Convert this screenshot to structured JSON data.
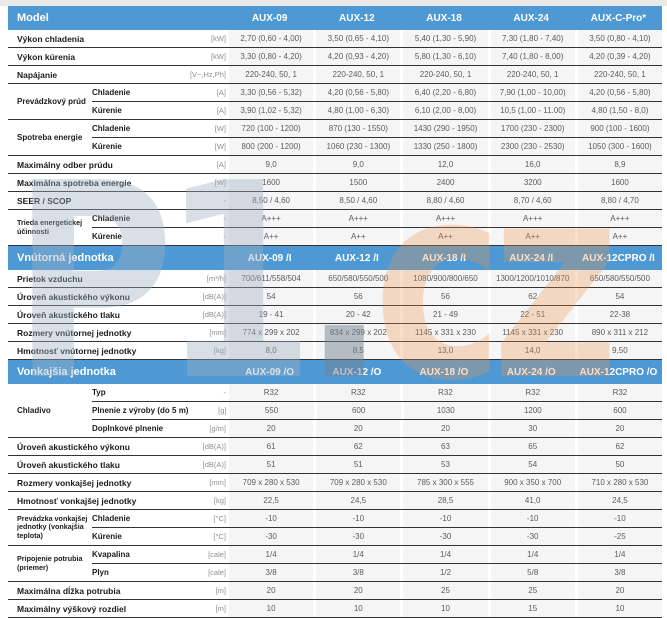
{
  "colors": {
    "header_blue": "#4e99d3",
    "cell_bg": "#f5f5f5",
    "border_dark": "#333333",
    "watermark_blue": "#9eafc4",
    "watermark_orange": "#ec9650"
  },
  "watermark": {
    "left": "P1",
    "dot": ".",
    "right": "cz"
  },
  "table": {
    "sections": [
      {
        "header": {
          "label": "Model",
          "columns": [
            "AUX-09",
            "AUX-12",
            "AUX-18",
            "AUX-24",
            "AUX-C-Pro*"
          ]
        },
        "rows": [
          {
            "label": "Výkon chladenia",
            "unit": "[kW]",
            "values": [
              "2,70 (0,60 - 4,00)",
              "3,50 (0,65 - 4,10)",
              "5,40 (1,30 - 5,90)",
              "7,30 (1,80 - 7,40)",
              "3,50 (0,80 - 4,10)"
            ]
          },
          {
            "label": "Výkon kúrenia",
            "unit": "[kW]",
            "values": [
              "3,30 (0,80 - 4,20)",
              "4,20 (0,93 - 4,20)",
              "5,80 (1,30 - 6,10)",
              "7,40 (1,80 - 8,00)",
              "4,20 (0,39 - 4,20)"
            ]
          },
          {
            "label": "Napájanie",
            "unit": "[V~,Hz,Ph]",
            "values": [
              "220-240, 50, 1",
              "220-240, 50, 1",
              "220-240, 50, 1",
              "220-240, 50, 1",
              "220-240, 50, 1"
            ]
          },
          {
            "group": "Prevádzkový prúd",
            "subrows": [
              {
                "label": "Chladenie",
                "unit": "[A]",
                "values": [
                  "3,30 (0,56 - 5,32)",
                  "4,20 (0,56 - 5,80)",
                  "6,40 (2,20 - 6,80)",
                  "7,90 (1,00 - 10,00)",
                  "4,20 (0,56 - 5,80)"
                ]
              },
              {
                "label": "Kúrenie",
                "unit": "[A]",
                "values": [
                  "3,90 (1,02 - 5,32)",
                  "4,80 (1,00 - 6,30)",
                  "6,10 (2,00 - 8,00)",
                  "10,5 (1,00 - 11.00)",
                  "4,80 (1,50 - 8,0)"
                ]
              }
            ]
          },
          {
            "group": "Spotreba energie",
            "subrows": [
              {
                "label": "Chladenie",
                "unit": "[W]",
                "values": [
                  "720 (100 - 1200)",
                  "870 (130 - 1550)",
                  "1430 (290 - 1950)",
                  "1700 (230 - 2300)",
                  "900 (100 - 1600)"
                ]
              },
              {
                "label": "Kúrenie",
                "unit": "[W]",
                "values": [
                  "800 (200 - 1200)",
                  "1060 (230 - 1300)",
                  "1330 (250 - 1800)",
                  "2300 (230 - 2530)",
                  "1050 (300 - 1600)"
                ]
              }
            ]
          },
          {
            "label": "Maximálny odber prúdu",
            "unit": "[A]",
            "values": [
              "9,0",
              "9,0",
              "12,0",
              "16,0",
              "8,9"
            ]
          },
          {
            "label": "Maximálna spotreba energie",
            "unit": "[W]",
            "values": [
              "1600",
              "1500",
              "2400",
              "3200",
              "1600"
            ]
          },
          {
            "label": "SEER / SCOP",
            "unit": "-",
            "values": [
              "8,50 / 4,60",
              "8,50 / 4,60",
              "8,80 / 4,60",
              "8,70 / 4,60",
              "8,80 / 4,70"
            ]
          },
          {
            "group": "Trieda energetickej účinnosti",
            "subrows": [
              {
                "label": "Chladenie",
                "unit": "-",
                "values": [
                  "A+++",
                  "A+++",
                  "A+++",
                  "A+++",
                  "A+++"
                ]
              },
              {
                "label": "Kúrenie",
                "unit": "-",
                "values": [
                  "A++",
                  "A++",
                  "A++",
                  "A++",
                  "A++"
                ]
              }
            ]
          }
        ]
      },
      {
        "header": {
          "label": "Vnútorná jednotka",
          "columns": [
            "AUX-09 /I",
            "AUX-12 /I",
            "AUX-18 /I",
            "AUX-24 /I",
            "AUX-12CPRO /I"
          ]
        },
        "rows": [
          {
            "label": "Prietok vzduchu",
            "unit": "[m³/h]",
            "values": [
              "700/611/558/504",
              "650/580/550/500",
              "1080/900/800/650",
              "1300/1200/1010/870",
              "650/580/550/500"
            ]
          },
          {
            "label": "Úroveň akustického výkonu",
            "unit": "[dB(A)]",
            "values": [
              "54",
              "56",
              "56",
              "62",
              "54"
            ]
          },
          {
            "label": "Úroveň akustického tlaku",
            "unit": "[dB(A)]",
            "values": [
              "19 - 41",
              "20 - 42",
              "21 - 49",
              "22 - 51",
              "22-38"
            ]
          },
          {
            "label": "Rozmery vnútornej jednotky",
            "unit": "[mm]",
            "values": [
              "774 x 299 x 202",
              "834 x 299 x 202",
              "1145 x 331 x 230",
              "1145 x 331 x 230",
              "890 x 311 x 212"
            ]
          },
          {
            "label": "Hmotnosť vnútornej jednotky",
            "unit": "[kg]",
            "values": [
              "8,0",
              "8,5",
              "13,0",
              "14,0",
              "9,50"
            ]
          }
        ]
      },
      {
        "header": {
          "label": "Vonkajšia jednotka",
          "columns": [
            "AUX-09 /O",
            "AUX-12 /O",
            "AUX-18 /O",
            "AUX-24 /O",
            "AUX-12CPRO /O"
          ]
        },
        "rows": [
          {
            "group": "Chladivo",
            "subrows": [
              {
                "label": "Typ",
                "unit": "-",
                "values": [
                  "R32",
                  "R32",
                  "R32",
                  "R32",
                  "R32"
                ]
              },
              {
                "label": "Plnenie z výroby (do 5 m)",
                "unit": "[g]",
                "values": [
                  "550",
                  "600",
                  "1030",
                  "1200",
                  "600"
                ]
              },
              {
                "label": "Doplnkové plnenie",
                "unit": "[g/m]",
                "values": [
                  "20",
                  "20",
                  "20",
                  "30",
                  "20"
                ]
              }
            ]
          },
          {
            "label": "Úroveň akustického výkonu",
            "unit": "[dB(A)]",
            "values": [
              "61",
              "62",
              "63",
              "65",
              "62"
            ]
          },
          {
            "label": "Úroveň akustického tlaku",
            "unit": "[dB(A)]",
            "values": [
              "51",
              "51",
              "53",
              "54",
              "50"
            ]
          },
          {
            "label": "Rozmery vonkajšej jednotky",
            "unit": "[mm]",
            "values": [
              "709 x 280 x 530",
              "709 x 280 x 530",
              "785 x 300 x 555",
              "900 x 350 x 700",
              "710 x 280 x 530"
            ]
          },
          {
            "label": "Hmotnosť vonkajšej jednotky",
            "unit": "[kg]",
            "values": [
              "22,5",
              "24,5",
              "28,5",
              "41,0",
              "24,5"
            ]
          },
          {
            "group": "Prevádzka vonkajšej jednotky (vonkajšia teplota)",
            "subrows": [
              {
                "label": "Chladenie",
                "unit": "[°C]",
                "values": [
                  "-10",
                  "-10",
                  "-10",
                  "-10",
                  "-10"
                ]
              },
              {
                "label": "Kúrenie",
                "unit": "[°C]",
                "values": [
                  "-30",
                  "-30",
                  "-30",
                  "-30",
                  "-25"
                ]
              }
            ]
          },
          {
            "group": "Pripojenie potrubia (priemer)",
            "subrows": [
              {
                "label": "Kvapalina",
                "unit": "[cale]",
                "values": [
                  "1/4",
                  "1/4",
                  "1/4",
                  "1/4",
                  "1/4"
                ]
              },
              {
                "label": "Plyn",
                "unit": "[cale]",
                "values": [
                  "3/8",
                  "3/8",
                  "1/2",
                  "5/8",
                  "3/8"
                ]
              }
            ]
          },
          {
            "label": "Maximálna dĺžka potrubia",
            "unit": "[m]",
            "values": [
              "20",
              "20",
              "25",
              "25",
              "20"
            ]
          },
          {
            "label": "Maximálny výškový rozdiel",
            "unit": "[m]",
            "values": [
              "10",
              "10",
              "10",
              "15",
              "10"
            ]
          }
        ]
      }
    ]
  }
}
